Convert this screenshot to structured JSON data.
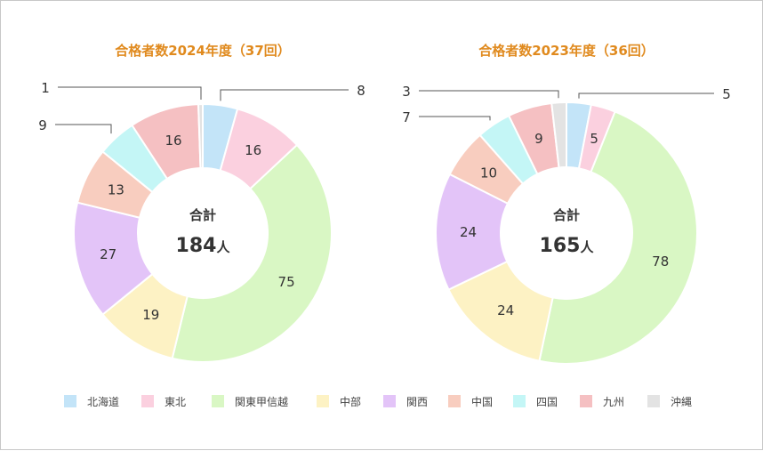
{
  "legend": {
    "items": [
      {
        "name": "北海道",
        "color": "#c3e4f8"
      },
      {
        "name": "東北",
        "color": "#fbd0df"
      },
      {
        "name": "関東甲信越",
        "color": "#d9f7c4"
      },
      {
        "name": "中部",
        "color": "#fdf2c4"
      },
      {
        "name": "関西",
        "color": "#e3c4f8"
      },
      {
        "name": "中国",
        "color": "#f8cdbf"
      },
      {
        "name": "四国",
        "color": "#c4f6f6"
      },
      {
        "name": "九州",
        "color": "#f5c0c2"
      },
      {
        "name": "沖縄",
        "color": "#e3e3e3"
      }
    ]
  },
  "chart_data": [
    {
      "type": "pie",
      "donut": true,
      "title": "合格者数2024年度（37回）",
      "center_label": "合計",
      "center_total": "184",
      "center_unit": "人",
      "categories": [
        "北海道",
        "東北",
        "関東甲信越",
        "中部",
        "関西",
        "中国",
        "四国",
        "九州",
        "沖縄"
      ],
      "values": [
        8,
        16,
        75,
        19,
        27,
        13,
        9,
        16,
        1
      ],
      "external_labels": [
        "北海道",
        "四国",
        "沖縄"
      ]
    },
    {
      "type": "pie",
      "donut": true,
      "title": "合格者数2023年度（36回）",
      "center_label": "合計",
      "center_total": "165",
      "center_unit": "人",
      "categories": [
        "北海道",
        "東北",
        "関東甲信越",
        "中部",
        "関西",
        "中国",
        "四国",
        "九州",
        "沖縄"
      ],
      "values": [
        5,
        5,
        78,
        24,
        24,
        10,
        7,
        9,
        3
      ],
      "external_labels": [
        "北海道",
        "四国",
        "沖縄"
      ]
    }
  ]
}
